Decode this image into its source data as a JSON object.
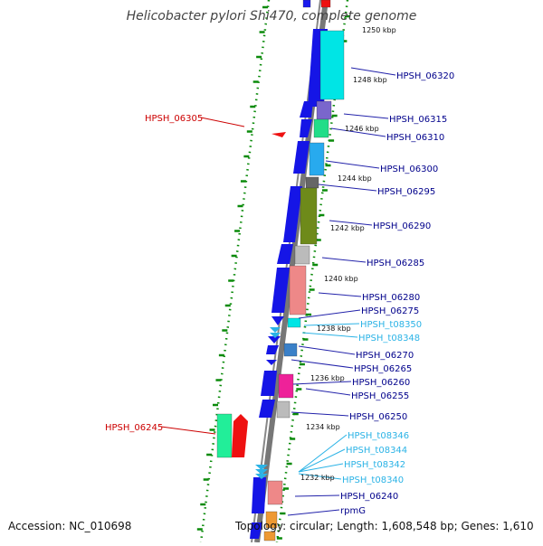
{
  "title": "Helicobacter pylori Shi470, complete genome",
  "accession": "Accession: NC_010698",
  "topology": "Topology: circular; Length: 1,608,548 bp; Genes: 1,610",
  "colors": {
    "forward_label": "#00008b",
    "reverse_label": "#cc0000",
    "trna_label": "#2bb3e6",
    "backbone": "#777777",
    "ticks": "#0a8a0a"
  },
  "scale_labels": [
    "1250 kbp",
    "1248 kbp",
    "1246 kbp",
    "1244 kbp",
    "1242 kbp",
    "1240 kbp",
    "1238 kbp",
    "1236 kbp",
    "1234 kbp",
    "1232 kbp"
  ],
  "left_labels": [
    "HPSH_06305",
    "HPSH_06245"
  ],
  "right_labels": [
    {
      "text": "HPSH_06320",
      "kind": "gene"
    },
    {
      "text": "HPSH_06315",
      "kind": "gene"
    },
    {
      "text": "HPSH_06310",
      "kind": "gene"
    },
    {
      "text": "HPSH_06300",
      "kind": "gene"
    },
    {
      "text": "HPSH_06295",
      "kind": "gene"
    },
    {
      "text": "HPSH_06290",
      "kind": "gene"
    },
    {
      "text": "HPSH_06285",
      "kind": "gene"
    },
    {
      "text": "HPSH_06280",
      "kind": "gene"
    },
    {
      "text": "HPSH_06275",
      "kind": "gene"
    },
    {
      "text": "HPSH_t08350",
      "kind": "trna"
    },
    {
      "text": "HPSH_t08348",
      "kind": "trna"
    },
    {
      "text": "HPSH_06270",
      "kind": "gene"
    },
    {
      "text": "HPSH_06265",
      "kind": "gene"
    },
    {
      "text": "HPSH_06260",
      "kind": "gene"
    },
    {
      "text": "HPSH_06255",
      "kind": "gene"
    },
    {
      "text": "HPSH_06250",
      "kind": "gene"
    },
    {
      "text": "HPSH_t08346",
      "kind": "trna"
    },
    {
      "text": "HPSH_t08344",
      "kind": "trna"
    },
    {
      "text": "HPSH_t08342",
      "kind": "trna"
    },
    {
      "text": "HPSH_t08340",
      "kind": "trna"
    },
    {
      "text": "HPSH_06240",
      "kind": "gene"
    },
    {
      "text": "rpmG",
      "kind": "gene"
    }
  ]
}
